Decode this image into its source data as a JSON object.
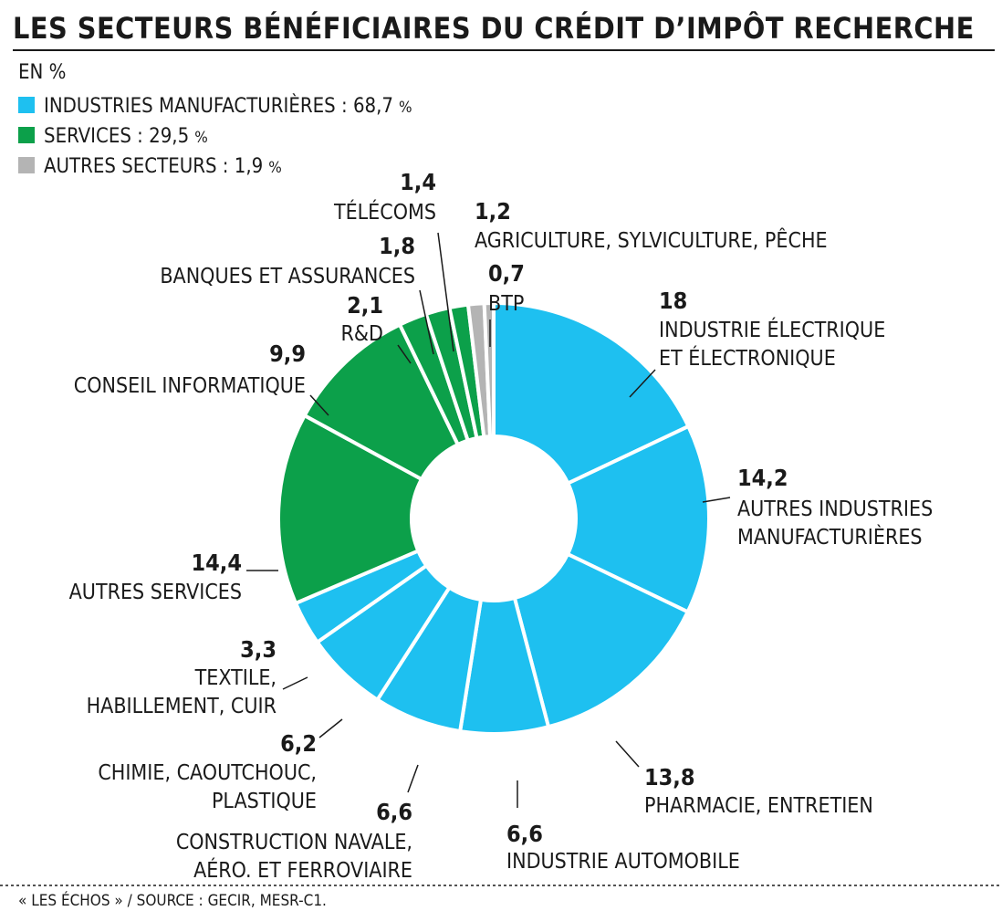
{
  "chart_data": {
    "type": "donut",
    "title": "LES SECTEURS BÉNÉFICIAIRES DU CRÉDIT D’IMPÔT RECHERCHE",
    "subtitle": "EN %",
    "unit": "%",
    "legend": [
      {
        "label": "INDUSTRIES MANUFACTURIÈRES : 68,7",
        "color": "#1ec0f0"
      },
      {
        "label": "SERVICES : 29,5",
        "color": "#0ca04a"
      },
      {
        "label": "AUTRES SECTEURS : 1,9",
        "color": "#b4b4b4"
      }
    ],
    "categories": [
      [
        "INDUSTRIE ÉLECTRIQUE",
        "ET ÉLECTRONIQUE"
      ],
      [
        "AUTRES INDUSTRIES",
        "MANUFACTURIÈRES"
      ],
      [
        "PHARMACIE, ENTRETIEN"
      ],
      [
        "INDUSTRIE AUTOMOBILE"
      ],
      [
        "CONSTRUCTION NAVALE,",
        "AÉRO. ET FERROVIAIRE"
      ],
      [
        "CHIMIE, CAOUTCHOUC,",
        "PLASTIQUE"
      ],
      [
        "TEXTILE,",
        "HABILLEMENT, CUIR"
      ],
      [
        "AUTRES SERVICES"
      ],
      [
        "CONSEIL INFORMATIQUE"
      ],
      [
        "R&D"
      ],
      [
        "BANQUES ET ASSURANCES"
      ],
      [
        "TÉLÉCOMS"
      ],
      [
        "AGRICULTURE, SYLVICULTURE, PÊCHE"
      ],
      [
        "BTP"
      ]
    ],
    "values": [
      18,
      14.2,
      13.8,
      6.6,
      6.6,
      6.2,
      3.3,
      14.4,
      9.9,
      2.1,
      1.8,
      1.4,
      1.2,
      0.7
    ],
    "value_labels": [
      "18",
      "14,2",
      "13,8",
      "6,6",
      "6,6",
      "6,2",
      "3,3",
      "14,4",
      "9,9",
      "2,1",
      "1,8",
      "1,4",
      "1,2",
      "0,7"
    ],
    "colors": [
      "#1ec0f0",
      "#1ec0f0",
      "#1ec0f0",
      "#1ec0f0",
      "#1ec0f0",
      "#1ec0f0",
      "#1ec0f0",
      "#0ca04a",
      "#0ca04a",
      "#0ca04a",
      "#0ca04a",
      "#0ca04a",
      "#b4b4b4",
      "#b4b4b4"
    ],
    "source": "« LES ÉCHOS » / SOURCE : GECIR, MESR-C1."
  }
}
